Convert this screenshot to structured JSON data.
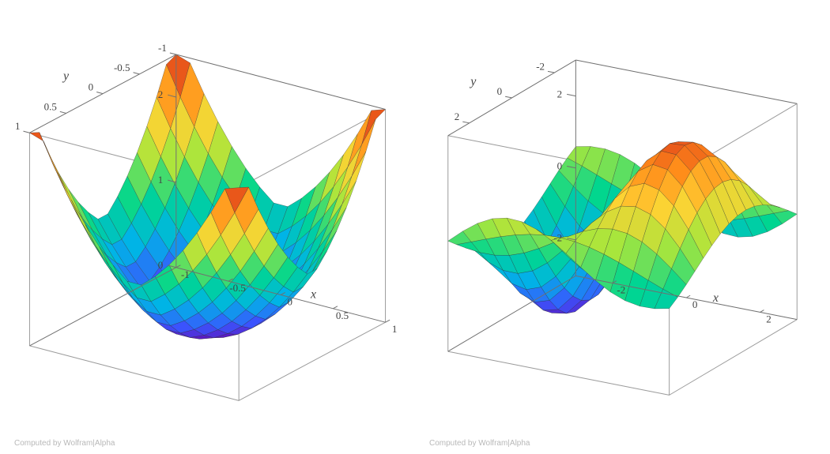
{
  "credit_text": "Computed by Wolfram|Alpha",
  "credit_color": "#b8b8b8",
  "credit_fontsize": 10,
  "axis_font_family": "Times New Roman, Georgia, serif",
  "axis_label_font_style": "italic",
  "axis_label_fontsize": 16,
  "tick_fontsize": 13,
  "box_line_color": "#707070",
  "mesh_line_color": "#333333",
  "mesh_line_width": 0.5,
  "mesh_density": 15,
  "background_color": "#ffffff",
  "plot_left": {
    "type": "surface3d",
    "function_desc": "z = x^2 + |y|^(2/3) style saddle/bowl with cusp peaks",
    "xlabel": "x",
    "ylabel": "y",
    "xlim": [
      -1.0,
      1.0
    ],
    "ylim": [
      -1.0,
      1.0
    ],
    "zlim": [
      0,
      2.5
    ],
    "xticks": [
      -1.0,
      -0.5,
      0.0,
      0.5,
      1.0
    ],
    "yticks": [
      -1.0,
      -0.5,
      0.0,
      0.5,
      1.0
    ],
    "zticks": [
      0,
      1,
      2
    ],
    "view": {
      "azimuth_deg": -35,
      "elevation_deg": 22
    },
    "colormap": "rainbow_purple_to_red",
    "color_stops": [
      [
        0.0,
        "#6a00a8"
      ],
      [
        0.15,
        "#3a55ff"
      ],
      [
        0.3,
        "#00b4e6"
      ],
      [
        0.45,
        "#00d68f"
      ],
      [
        0.6,
        "#a8e63c"
      ],
      [
        0.75,
        "#ffd233"
      ],
      [
        0.88,
        "#ff8c1a"
      ],
      [
        1.0,
        "#d9301a"
      ]
    ]
  },
  "plot_right": {
    "type": "surface3d",
    "function_desc": "z = sin-like undulating product surface",
    "xlabel": "x",
    "ylabel": "y",
    "xlim": [
      -3.0,
      3.0
    ],
    "ylim": [
      -3.0,
      3.0
    ],
    "zlim": [
      -3,
      3
    ],
    "xticks": [
      -2,
      0,
      2
    ],
    "yticks": [
      -2,
      0,
      2
    ],
    "zticks": [
      -2,
      0,
      2
    ],
    "view": {
      "azimuth_deg": -30,
      "elevation_deg": 20
    },
    "colormap": "rainbow_purple_to_red",
    "color_stops": [
      [
        0.0,
        "#6a00a8"
      ],
      [
        0.15,
        "#3a55ff"
      ],
      [
        0.3,
        "#00b4e6"
      ],
      [
        0.45,
        "#00d68f"
      ],
      [
        0.6,
        "#a8e63c"
      ],
      [
        0.75,
        "#ffd233"
      ],
      [
        0.88,
        "#ff8c1a"
      ],
      [
        1.0,
        "#d9301a"
      ]
    ]
  }
}
